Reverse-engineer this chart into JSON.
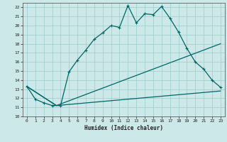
{
  "xlabel": "Humidex (Indice chaleur)",
  "xlim": [
    -0.5,
    23.5
  ],
  "ylim": [
    10,
    22.5
  ],
  "yticks": [
    10,
    11,
    12,
    13,
    14,
    15,
    16,
    17,
    18,
    19,
    20,
    21,
    22
  ],
  "xticks": [
    0,
    1,
    2,
    3,
    4,
    5,
    6,
    7,
    8,
    9,
    10,
    11,
    12,
    13,
    14,
    15,
    16,
    17,
    18,
    19,
    20,
    21,
    22,
    23
  ],
  "bg_color": "#cce8e8",
  "grid_color": "#99cccc",
  "line_color": "#006666",
  "line1_x": [
    0,
    1,
    2,
    3,
    4,
    5,
    6,
    7,
    8,
    9,
    10,
    11,
    12,
    13,
    14,
    15,
    16,
    17,
    18,
    19,
    20,
    21,
    22,
    23
  ],
  "line1_y": [
    13.3,
    11.9,
    11.5,
    11.2,
    11.2,
    14.9,
    16.2,
    17.3,
    18.5,
    19.2,
    20.0,
    19.8,
    22.2,
    20.3,
    21.3,
    21.2,
    22.1,
    20.8,
    19.3,
    17.5,
    16.0,
    15.2,
    14.0,
    13.2
  ],
  "line2_x": [
    0,
    3.5,
    23
  ],
  "line2_y": [
    13.3,
    11.2,
    12.8
  ],
  "line3_x": [
    0,
    3.5,
    23
  ],
  "line3_y": [
    13.3,
    11.2,
    18.0
  ],
  "marker": "+"
}
